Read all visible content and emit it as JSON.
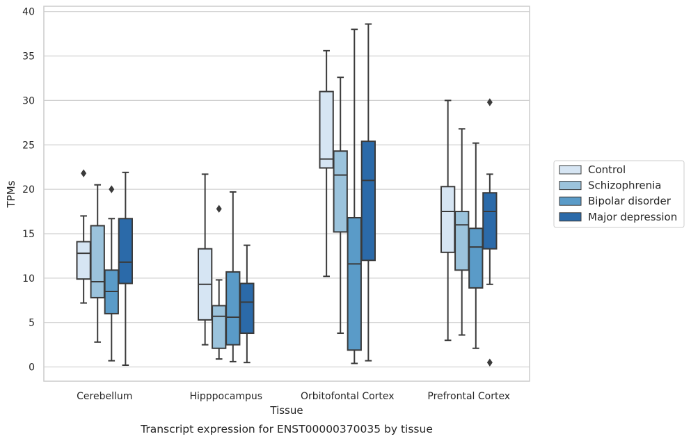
{
  "chart_data": {
    "type": "box",
    "caption": "Transcript expression for ENST00000370035 by tissue",
    "xlabel": "Tissue",
    "ylabel": "TPMs",
    "ylim": [
      -1.6,
      40.6
    ],
    "yticks": [
      0,
      5,
      10,
      15,
      20,
      25,
      30,
      35,
      40
    ],
    "grid": "horizontal",
    "legend_position": "right",
    "categories": [
      "Cerebellum",
      "Hipppocampus",
      "Orbitofontal Cortex",
      "Prefrontal Cortex"
    ],
    "series": [
      {
        "name": "Control",
        "color": "#d6e5f3",
        "boxes": [
          {
            "whislo": 7.2,
            "q1": 9.9,
            "med": 12.8,
            "q3": 14.1,
            "whishi": 17.0,
            "fliers": [
              21.8
            ]
          },
          {
            "whislo": 2.5,
            "q1": 5.3,
            "med": 9.3,
            "q3": 13.3,
            "whishi": 21.7,
            "fliers": []
          },
          {
            "whislo": 10.2,
            "q1": 22.4,
            "med": 23.4,
            "q3": 31.0,
            "whishi": 35.6,
            "fliers": []
          },
          {
            "whislo": 3.0,
            "q1": 12.9,
            "med": 17.5,
            "q3": 20.3,
            "whishi": 30.0,
            "fliers": []
          }
        ]
      },
      {
        "name": "Schizophrenia",
        "color": "#9bc3dc",
        "boxes": [
          {
            "whislo": 2.8,
            "q1": 7.8,
            "med": 9.6,
            "q3": 15.9,
            "whishi": 20.5,
            "fliers": []
          },
          {
            "whislo": 0.9,
            "q1": 2.1,
            "med": 5.7,
            "q3": 6.9,
            "whishi": 9.8,
            "fliers": [
              17.8
            ]
          },
          {
            "whislo": 3.8,
            "q1": 15.2,
            "med": 21.6,
            "q3": 24.3,
            "whishi": 32.6,
            "fliers": []
          },
          {
            "whislo": 3.6,
            "q1": 10.9,
            "med": 16.0,
            "q3": 17.5,
            "whishi": 26.8,
            "fliers": []
          }
        ]
      },
      {
        "name": "Bipolar disorder",
        "color": "#5a9bc8",
        "boxes": [
          {
            "whislo": 0.7,
            "q1": 6.0,
            "med": 8.5,
            "q3": 10.9,
            "whishi": 16.7,
            "fliers": [
              20.0
            ]
          },
          {
            "whislo": 0.6,
            "q1": 2.5,
            "med": 5.6,
            "q3": 10.7,
            "whishi": 19.7,
            "fliers": []
          },
          {
            "whislo": 0.4,
            "q1": 1.9,
            "med": 11.6,
            "q3": 16.8,
            "whishi": 38.0,
            "fliers": []
          },
          {
            "whislo": 2.1,
            "q1": 8.9,
            "med": 13.5,
            "q3": 15.6,
            "whishi": 25.2,
            "fliers": []
          }
        ]
      },
      {
        "name": "Major depression",
        "color": "#2b6aa9",
        "boxes": [
          {
            "whislo": 0.2,
            "q1": 9.4,
            "med": 11.8,
            "q3": 16.7,
            "whishi": 21.9,
            "fliers": []
          },
          {
            "whislo": 0.5,
            "q1": 3.8,
            "med": 7.3,
            "q3": 9.4,
            "whishi": 13.7,
            "fliers": []
          },
          {
            "whislo": 0.7,
            "q1": 12.0,
            "med": 21.0,
            "q3": 25.4,
            "whishi": 38.6,
            "fliers": []
          },
          {
            "whislo": 9.3,
            "q1": 13.3,
            "med": 17.5,
            "q3": 19.6,
            "whishi": 21.7,
            "fliers": [
              29.8,
              0.5
            ]
          }
        ]
      }
    ]
  }
}
